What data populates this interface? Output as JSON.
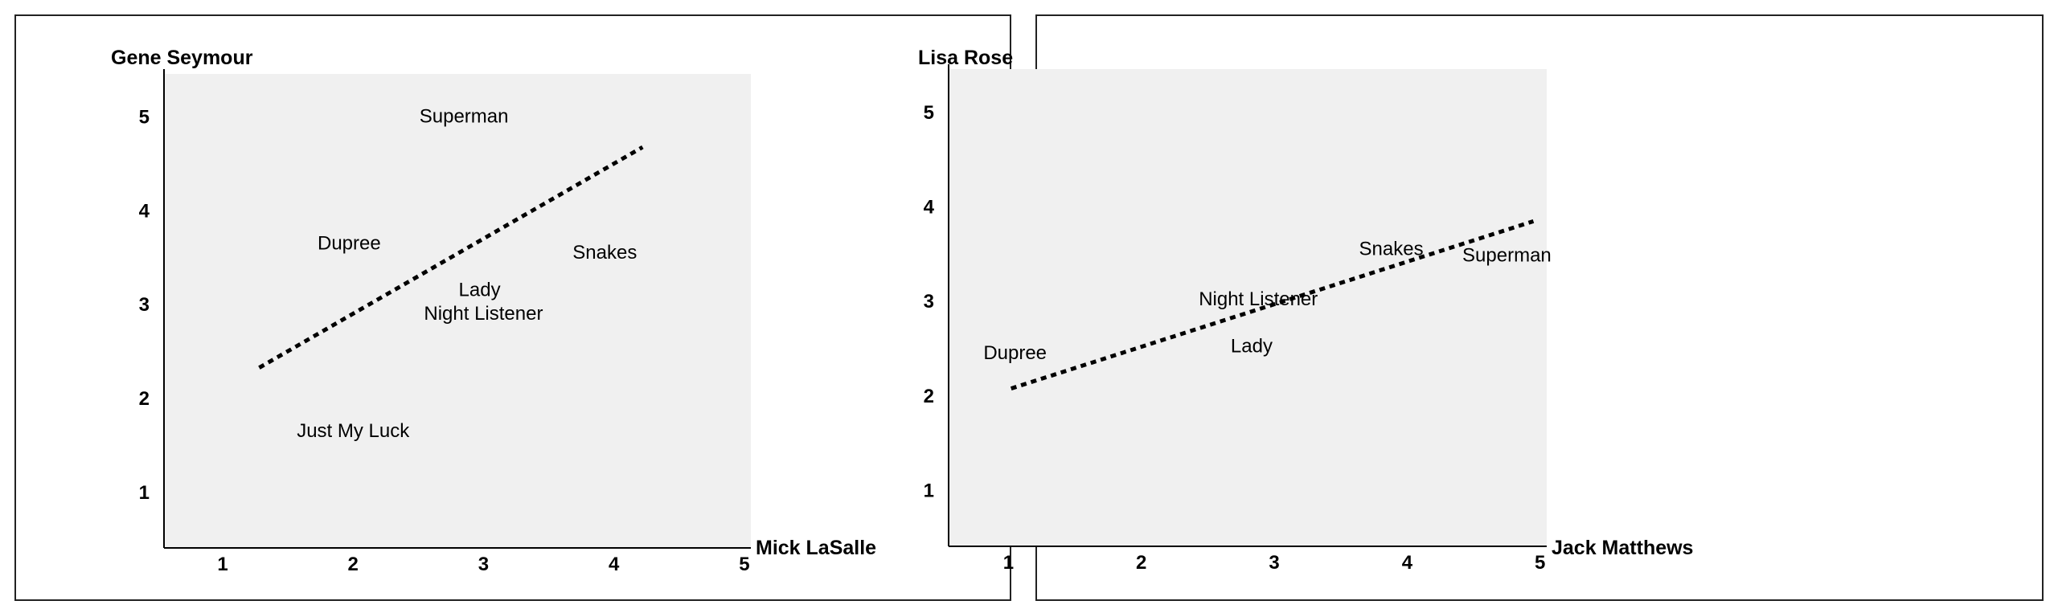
{
  "chart_data": [
    {
      "type": "scatter",
      "title": "",
      "xlabel": "Mick LaSalle",
      "ylabel": "Gene Seymour",
      "xlim": [
        0.55,
        5.05
      ],
      "ylim": [
        0.4,
        5.45
      ],
      "xticks": [
        1,
        2,
        3,
        4,
        5
      ],
      "yticks": [
        1,
        2,
        3,
        4,
        5
      ],
      "grid": false,
      "points": [
        {
          "label": "Superman",
          "x": 2.85,
          "y": 5.0
        },
        {
          "label": "Dupree",
          "x": 1.97,
          "y": 3.65
        },
        {
          "label": "Snakes",
          "x": 3.93,
          "y": 3.55
        },
        {
          "label": "Lady",
          "x": 2.97,
          "y": 3.15
        },
        {
          "label": "Night Listener",
          "x": 3.0,
          "y": 2.9
        },
        {
          "label": "Just My Luck",
          "x": 2.0,
          "y": 1.65
        }
      ],
      "trendline": {
        "style": "dotted",
        "x": [
          1.28,
          4.22
        ],
        "y": [
          2.32,
          4.67
        ]
      }
    },
    {
      "type": "scatter",
      "title": "",
      "xlabel": "Jack Matthews",
      "ylabel": "Lisa Rose",
      "xlim": [
        0.55,
        5.05
      ],
      "ylim": [
        0.4,
        5.45
      ],
      "xticks": [
        1,
        2,
        3,
        4,
        5
      ],
      "yticks": [
        1,
        2,
        3,
        4,
        5
      ],
      "grid": false,
      "points": [
        {
          "label": "Snakes",
          "x": 3.88,
          "y": 3.55
        },
        {
          "label": "Superman",
          "x": 4.75,
          "y": 3.48
        },
        {
          "label": "Night Listener",
          "x": 2.88,
          "y": 3.02
        },
        {
          "label": "Dupree",
          "x": 1.05,
          "y": 2.45
        },
        {
          "label": "Lady",
          "x": 2.83,
          "y": 2.52
        }
      ],
      "trendline": {
        "style": "dotted",
        "x": [
          1.02,
          4.95
        ],
        "y": [
          2.07,
          3.84
        ]
      }
    }
  ]
}
